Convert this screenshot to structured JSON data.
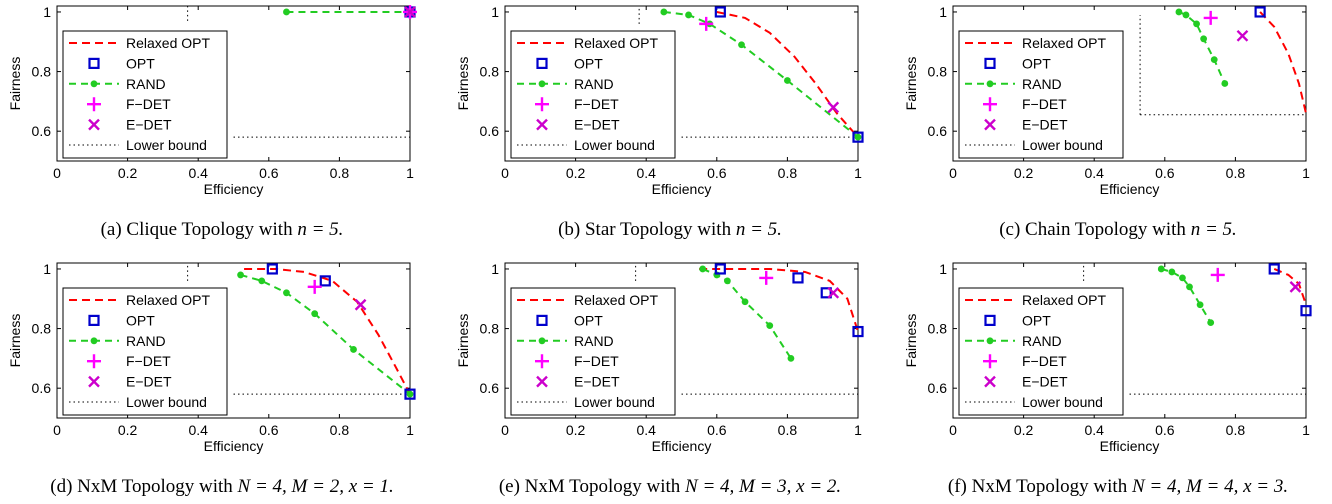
{
  "legend_labels": [
    "Relaxed OPT",
    "OPT",
    "RAND",
    "F−DET",
    "E−DET",
    "Lower bound"
  ],
  "colors": {
    "relaxed": "#ff0000",
    "opt": "#0000cc",
    "rand": "#22cc22",
    "fdet": "#ff00ff",
    "edet": "#cc00cc",
    "lower": "#000000"
  },
  "chart_data": [
    {
      "type": "line",
      "caption_tag": "(a)",
      "caption_text": "Clique Topology with",
      "caption_math": "n = 5.",
      "xlabel": "Efficiency",
      "ylabel": "Fairness",
      "xlim": [
        0,
        1
      ],
      "ylim": [
        0.5,
        1.02
      ],
      "xticks": [
        "0",
        "0.2",
        "0.4",
        "0.6",
        "0.8",
        "1"
      ],
      "yticks": [
        "0.6",
        "0.8",
        "1"
      ],
      "relaxed_opt": [
        [
          1,
          1
        ]
      ],
      "opt": [
        [
          1,
          1
        ]
      ],
      "rand": [
        [
          0.65,
          1
        ],
        [
          1,
          1
        ]
      ],
      "f_det": [
        [
          1,
          1
        ]
      ],
      "e_det": [
        [
          1,
          1
        ]
      ],
      "lower_bound": {
        "x0": 0.5,
        "x1": 1,
        "y": 0.58,
        "xv": 0.37,
        "yv0": 0.97,
        "yv1": 1.02
      }
    },
    {
      "type": "line",
      "caption_tag": "(b)",
      "caption_text": "Star Topology with",
      "caption_math": "n = 5.",
      "xlabel": "Efficiency",
      "ylabel": "Fairness",
      "xlim": [
        0,
        1
      ],
      "ylim": [
        0.5,
        1.02
      ],
      "xticks": [
        "0",
        "0.2",
        "0.4",
        "0.6",
        "0.8",
        "1"
      ],
      "yticks": [
        "0.6",
        "0.8",
        "1"
      ],
      "relaxed_opt": [
        [
          0.6,
          1.0
        ],
        [
          0.68,
          0.98
        ],
        [
          0.75,
          0.93
        ],
        [
          0.82,
          0.85
        ],
        [
          0.88,
          0.76
        ],
        [
          0.94,
          0.66
        ],
        [
          1,
          0.58
        ]
      ],
      "opt": [
        [
          0.61,
          1.0
        ],
        [
          1,
          0.58
        ]
      ],
      "rand": [
        [
          0.45,
          1.0
        ],
        [
          0.52,
          0.99
        ],
        [
          0.58,
          0.96
        ],
        [
          0.67,
          0.89
        ],
        [
          0.8,
          0.77
        ],
        [
          1,
          0.58
        ]
      ],
      "f_det": [
        [
          0.57,
          0.96
        ]
      ],
      "e_det": [
        [
          0.93,
          0.68
        ]
      ],
      "lower_bound": {
        "x0": 0.5,
        "x1": 1,
        "y": 0.58,
        "xv": 0.38,
        "yv0": 0.96,
        "yv1": 1.02
      }
    },
    {
      "type": "line",
      "caption_tag": "(c)",
      "caption_text": "Chain Topology with",
      "caption_math": "n = 5.",
      "xlabel": "Efficiency",
      "ylabel": "Fairness",
      "xlim": [
        0,
        1
      ],
      "ylim": [
        0.5,
        1.02
      ],
      "xticks": [
        "0",
        "0.2",
        "0.4",
        "0.6",
        "0.8",
        "1"
      ],
      "yticks": [
        "0.6",
        "0.8",
        "1"
      ],
      "relaxed_opt": [
        [
          0.87,
          1.0
        ],
        [
          0.91,
          0.95
        ],
        [
          0.95,
          0.86
        ],
        [
          0.98,
          0.76
        ],
        [
          1,
          0.66
        ]
      ],
      "opt": [
        [
          0.87,
          1.0
        ]
      ],
      "rand": [
        [
          0.64,
          1.0
        ],
        [
          0.66,
          0.99
        ],
        [
          0.69,
          0.96
        ],
        [
          0.71,
          0.91
        ],
        [
          0.74,
          0.84
        ],
        [
          0.77,
          0.76
        ]
      ],
      "f_det": [
        [
          0.73,
          0.98
        ]
      ],
      "e_det": [
        [
          0.82,
          0.92
        ]
      ],
      "lower_bound": {
        "x0": 0.53,
        "x1": 1,
        "y": 0.655,
        "xv": 0.53,
        "yv0": 0.655,
        "yv1": 0.99
      }
    },
    {
      "type": "line",
      "caption_tag": "(d)",
      "caption_text": "NxM Topology with",
      "caption_math": "N = 4, M = 2, x = 1.",
      "xlabel": "Efficiency",
      "ylabel": "Fairness",
      "xlim": [
        0,
        1
      ],
      "ylim": [
        0.5,
        1.02
      ],
      "xticks": [
        "0",
        "0.2",
        "0.4",
        "0.6",
        "0.8",
        "1"
      ],
      "yticks": [
        "0.6",
        "0.8",
        "1"
      ],
      "relaxed_opt": [
        [
          0.53,
          1.0
        ],
        [
          0.62,
          1.0
        ],
        [
          0.7,
          0.99
        ],
        [
          0.78,
          0.96
        ],
        [
          0.85,
          0.89
        ],
        [
          0.91,
          0.78
        ],
        [
          0.96,
          0.67
        ],
        [
          1,
          0.58
        ]
      ],
      "opt": [
        [
          0.61,
          1.0
        ],
        [
          0.76,
          0.96
        ],
        [
          1,
          0.58
        ]
      ],
      "rand": [
        [
          0.52,
          0.98
        ],
        [
          0.58,
          0.96
        ],
        [
          0.65,
          0.92
        ],
        [
          0.73,
          0.85
        ],
        [
          0.84,
          0.73
        ],
        [
          1,
          0.58
        ]
      ],
      "f_det": [
        [
          0.73,
          0.94
        ]
      ],
      "e_det": [
        [
          0.86,
          0.88
        ]
      ],
      "lower_bound": {
        "x0": 0.5,
        "x1": 1,
        "y": 0.58,
        "xv": 0.37,
        "yv0": 0.96,
        "yv1": 1.02
      }
    },
    {
      "type": "line",
      "caption_tag": "(e)",
      "caption_text": "NxM Topology with",
      "caption_math": "N = 4, M = 3, x = 2.",
      "xlabel": "Efficiency",
      "ylabel": "Fairness",
      "xlim": [
        0,
        1
      ],
      "ylim": [
        0.5,
        1.02
      ],
      "xticks": [
        "0",
        "0.2",
        "0.4",
        "0.6",
        "0.8",
        "1"
      ],
      "yticks": [
        "0.6",
        "0.8",
        "1"
      ],
      "relaxed_opt": [
        [
          0.55,
          1.0
        ],
        [
          0.65,
          1.0
        ],
        [
          0.75,
          1.0
        ],
        [
          0.85,
          0.99
        ],
        [
          0.92,
          0.96
        ],
        [
          0.97,
          0.9
        ],
        [
          1,
          0.79
        ]
      ],
      "opt": [
        [
          0.61,
          1.0
        ],
        [
          0.83,
          0.97
        ],
        [
          0.91,
          0.92
        ],
        [
          1,
          0.79
        ]
      ],
      "rand": [
        [
          0.56,
          1.0
        ],
        [
          0.6,
          0.98
        ],
        [
          0.63,
          0.96
        ],
        [
          0.68,
          0.89
        ],
        [
          0.75,
          0.81
        ],
        [
          0.81,
          0.7
        ]
      ],
      "f_det": [
        [
          0.74,
          0.97
        ]
      ],
      "e_det": [
        [
          0.93,
          0.92
        ]
      ],
      "lower_bound": {
        "x0": 0.5,
        "x1": 1,
        "y": 0.58,
        "xv": 0.37,
        "yv0": 0.96,
        "yv1": 1.02
      }
    },
    {
      "type": "line",
      "caption_tag": "(f)",
      "caption_text": "NxM Topology with",
      "caption_math": "N = 4, M = 4, x = 3.",
      "xlabel": "Efficiency",
      "ylabel": "Fairness",
      "xlim": [
        0,
        1
      ],
      "ylim": [
        0.5,
        1.02
      ],
      "xticks": [
        "0",
        "0.2",
        "0.4",
        "0.6",
        "0.8",
        "1"
      ],
      "yticks": [
        "0.6",
        "0.8",
        "1"
      ],
      "relaxed_opt": [
        [
          0.91,
          1.0
        ],
        [
          0.95,
          0.98
        ],
        [
          0.98,
          0.95
        ],
        [
          1,
          0.88
        ]
      ],
      "opt": [
        [
          0.91,
          1.0
        ],
        [
          1,
          0.86
        ]
      ],
      "rand": [
        [
          0.59,
          1.0
        ],
        [
          0.62,
          0.99
        ],
        [
          0.65,
          0.97
        ],
        [
          0.67,
          0.94
        ],
        [
          0.7,
          0.88
        ],
        [
          0.73,
          0.82
        ]
      ],
      "f_det": [
        [
          0.75,
          0.98
        ]
      ],
      "e_det": [
        [
          0.97,
          0.94
        ]
      ],
      "lower_bound": {
        "x0": 0.5,
        "x1": 1,
        "y": 0.58,
        "xv": 0.37,
        "yv0": 0.96,
        "yv1": 1.02
      }
    }
  ]
}
